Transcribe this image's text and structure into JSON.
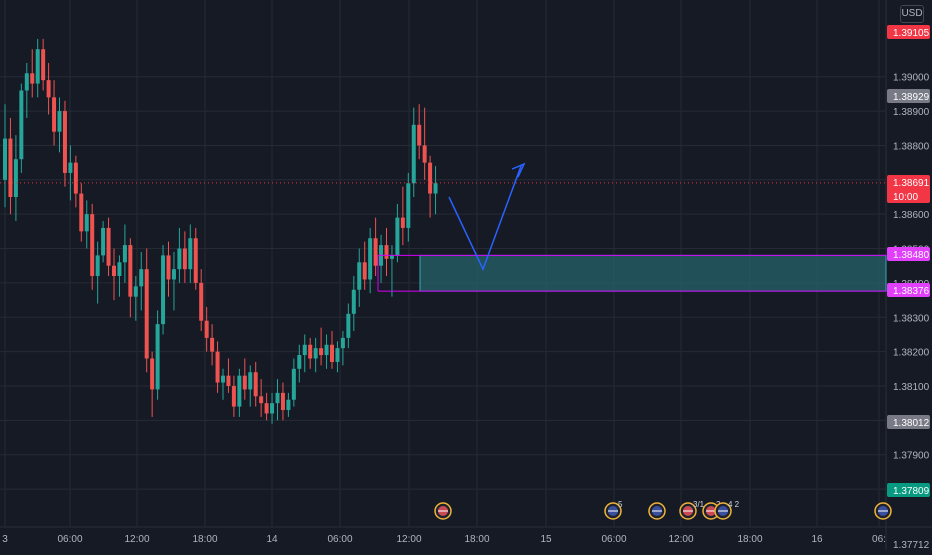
{
  "colors": {
    "background": "#161a25",
    "grid": "#262a35",
    "up": "#26a69a",
    "down": "#ef5350",
    "axis_text": "#b2b5be",
    "zone_border": "#d500f9",
    "zone_fill": "#26636b",
    "arrow": "#2962ff",
    "current_price": "#f23645"
  },
  "currency_button": "USD",
  "chart_data": {
    "type": "candlestick",
    "y_axis": {
      "ylim": [
        1.377,
        1.392
      ],
      "ticks": [
        "1.39000",
        "1.38900",
        "1.38800",
        "1.38700",
        "1.38600",
        "1.38500",
        "1.38400",
        "1.38300",
        "1.38200",
        "1.38100",
        "1.38000",
        "1.37900",
        "1.37800",
        "1.37712"
      ]
    },
    "x_axis": {
      "ticks": [
        "3",
        "06:00",
        "12:00",
        "18:00",
        "14",
        "06:00",
        "12:00",
        "18:00",
        "15",
        "06:00",
        "12:00",
        "18:00",
        "16",
        "06:"
      ]
    },
    "price_labels": [
      {
        "name": "high",
        "value": "1.39105",
        "color": "#f23645"
      },
      {
        "name": "prev-close",
        "value": "1.38929",
        "color": "#787b86"
      },
      {
        "name": "current",
        "value": "1.38691",
        "sub": "10:00",
        "color": "#f23645"
      },
      {
        "name": "zone-top",
        "value": "1.38480",
        "color": "#e040fb"
      },
      {
        "name": "zone-bottom",
        "value": "1.38376",
        "color": "#e040fb"
      },
      {
        "name": "low",
        "value": "1.38012",
        "color": "#787b86"
      },
      {
        "name": "recent-low",
        "value": "1.37809",
        "color": "#089981"
      }
    ],
    "candles": [
      [
        1.387,
        1.3892,
        1.3862,
        1.3882
      ],
      [
        1.3882,
        1.3888,
        1.386,
        1.3865
      ],
      [
        1.3865,
        1.3883,
        1.3858,
        1.3876
      ],
      [
        1.3876,
        1.3898,
        1.3872,
        1.3896
      ],
      [
        1.3896,
        1.3904,
        1.3888,
        1.3901
      ],
      [
        1.3901,
        1.3908,
        1.3894,
        1.3898
      ],
      [
        1.3898,
        1.3911,
        1.3894,
        1.3908
      ],
      [
        1.3908,
        1.3911,
        1.3896,
        1.3899
      ],
      [
        1.3899,
        1.3904,
        1.3889,
        1.3894
      ],
      [
        1.3894,
        1.3899,
        1.388,
        1.3884
      ],
      [
        1.3884,
        1.3894,
        1.3878,
        1.389
      ],
      [
        1.389,
        1.3893,
        1.3868,
        1.3872
      ],
      [
        1.3872,
        1.388,
        1.3864,
        1.3875
      ],
      [
        1.3875,
        1.3877,
        1.3862,
        1.3866
      ],
      [
        1.3866,
        1.3869,
        1.3852,
        1.3855
      ],
      [
        1.3855,
        1.3864,
        1.385,
        1.386
      ],
      [
        1.386,
        1.3863,
        1.3838,
        1.3842
      ],
      [
        1.3842,
        1.3852,
        1.3834,
        1.3848
      ],
      [
        1.3848,
        1.3858,
        1.3846,
        1.3856
      ],
      [
        1.3856,
        1.3859,
        1.3842,
        1.3845
      ],
      [
        1.3845,
        1.385,
        1.3835,
        1.3842
      ],
      [
        1.3842,
        1.3848,
        1.3836,
        1.3846
      ],
      [
        1.3846,
        1.3857,
        1.384,
        1.3851
      ],
      [
        1.3851,
        1.3853,
        1.383,
        1.3836
      ],
      [
        1.3836,
        1.3842,
        1.3829,
        1.3839
      ],
      [
        1.3839,
        1.3849,
        1.3832,
        1.3844
      ],
      [
        1.3844,
        1.385,
        1.3814,
        1.3818
      ],
      [
        1.3818,
        1.382,
        1.3801,
        1.3809
      ],
      [
        1.3809,
        1.3832,
        1.3806,
        1.3828
      ],
      [
        1.3828,
        1.3851,
        1.3825,
        1.3848
      ],
      [
        1.3848,
        1.3852,
        1.3836,
        1.3841
      ],
      [
        1.3841,
        1.3849,
        1.3832,
        1.3844
      ],
      [
        1.3844,
        1.3856,
        1.384,
        1.385
      ],
      [
        1.385,
        1.3855,
        1.384,
        1.3844
      ],
      [
        1.3844,
        1.3857,
        1.384,
        1.3853
      ],
      [
        1.3853,
        1.3856,
        1.3838,
        1.384
      ],
      [
        1.384,
        1.3844,
        1.3826,
        1.3829
      ],
      [
        1.3829,
        1.3833,
        1.382,
        1.3824
      ],
      [
        1.3824,
        1.3828,
        1.3816,
        1.382
      ],
      [
        1.382,
        1.3823,
        1.3808,
        1.3811
      ],
      [
        1.3811,
        1.3815,
        1.3806,
        1.3813
      ],
      [
        1.3813,
        1.3818,
        1.3808,
        1.381
      ],
      [
        1.381,
        1.3813,
        1.3801,
        1.3804
      ],
      [
        1.3804,
        1.3815,
        1.3801,
        1.3813
      ],
      [
        1.3813,
        1.3818,
        1.3806,
        1.3809
      ],
      [
        1.3809,
        1.3816,
        1.3804,
        1.3814
      ],
      [
        1.3814,
        1.3817,
        1.3804,
        1.3807
      ],
      [
        1.3807,
        1.3812,
        1.3801,
        1.3805
      ],
      [
        1.3805,
        1.3808,
        1.38,
        1.3802
      ],
      [
        1.3802,
        1.3808,
        1.3799,
        1.3805
      ],
      [
        1.3805,
        1.3812,
        1.38,
        1.3808
      ],
      [
        1.3808,
        1.3811,
        1.38,
        1.3803
      ],
      [
        1.3803,
        1.3808,
        1.3801,
        1.3806
      ],
      [
        1.3806,
        1.3818,
        1.3804,
        1.3815
      ],
      [
        1.3815,
        1.3822,
        1.3811,
        1.3819
      ],
      [
        1.3819,
        1.3825,
        1.3814,
        1.3822
      ],
      [
        1.3822,
        1.3824,
        1.3815,
        1.3818
      ],
      [
        1.3818,
        1.3824,
        1.3814,
        1.3821
      ],
      [
        1.3821,
        1.3827,
        1.3816,
        1.3819
      ],
      [
        1.3819,
        1.3825,
        1.3815,
        1.3822
      ],
      [
        1.3822,
        1.3826,
        1.3815,
        1.3817
      ],
      [
        1.3817,
        1.3823,
        1.3814,
        1.3821
      ],
      [
        1.3821,
        1.3826,
        1.3816,
        1.3824
      ],
      [
        1.3824,
        1.3834,
        1.3821,
        1.3831
      ],
      [
        1.3831,
        1.3842,
        1.3826,
        1.3838
      ],
      [
        1.3838,
        1.385,
        1.3833,
        1.3846
      ],
      [
        1.3846,
        1.3852,
        1.3838,
        1.3841
      ],
      [
        1.3841,
        1.3856,
        1.3837,
        1.3853
      ],
      [
        1.3853,
        1.3859,
        1.3842,
        1.3845
      ],
      [
        1.3845,
        1.3854,
        1.384,
        1.3851
      ],
      [
        1.3851,
        1.3856,
        1.3842,
        1.3847
      ],
      [
        1.3847,
        1.3851,
        1.3836,
        1.3848
      ],
      [
        1.3848,
        1.3863,
        1.3846,
        1.3859
      ],
      [
        1.3859,
        1.3868,
        1.3851,
        1.3856
      ],
      [
        1.3856,
        1.3872,
        1.3852,
        1.3869
      ],
      [
        1.3869,
        1.3891,
        1.3865,
        1.3886
      ],
      [
        1.3886,
        1.3892,
        1.3876,
        1.388
      ],
      [
        1.388,
        1.3891,
        1.387,
        1.3875
      ],
      [
        1.3875,
        1.3877,
        1.3859,
        1.3866
      ],
      [
        1.3866,
        1.3874,
        1.386,
        1.3869
      ]
    ],
    "zone": {
      "top": 1.3848,
      "bottom": 1.38376,
      "label_top": "1.38480",
      "label_bottom": "1.38376"
    },
    "projection": {
      "points_y": [
        1.3865,
        1.3844,
        1.3874
      ]
    },
    "events": [
      {
        "flag": "us",
        "count": ""
      },
      {
        "flag": "uk",
        "count": "5"
      },
      {
        "flag": "uk",
        "count": ""
      },
      {
        "flag": "us",
        "count": "3/1"
      },
      {
        "flag": "us",
        "count": "2"
      },
      {
        "flag": "uk",
        "count": "4 2"
      },
      {
        "flag": "uk",
        "count": ""
      }
    ]
  }
}
